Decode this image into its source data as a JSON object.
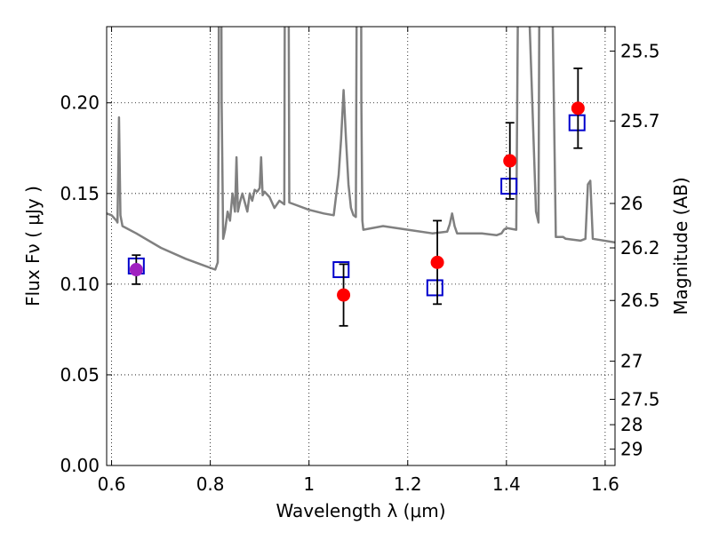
{
  "chart_data": {
    "type": "scatter",
    "xlabel": "Wavelength  λ (μm)",
    "ylabel": "Flux  Fν  ( μJy )",
    "y2label": "Magnitude (AB)",
    "xlim": [
      0.59,
      1.62
    ],
    "ylim": [
      0.0,
      0.242
    ],
    "grid": true,
    "x_ticks": [
      0.6,
      0.8,
      1.0,
      1.2,
      1.4,
      1.6
    ],
    "x_tick_labels": [
      "0.6",
      "0.8",
      "1",
      "1.2",
      "1.4",
      "1.6"
    ],
    "y_ticks": [
      0.0,
      0.05,
      0.1,
      0.15,
      0.2
    ],
    "y_tick_labels": [
      "0.00",
      "0.05",
      "0.10",
      "0.15",
      "0.20"
    ],
    "y2_ticks": [
      {
        "label": "25.5",
        "flux": 0.2285
      },
      {
        "label": "25.7",
        "flux": 0.19
      },
      {
        "label": "26",
        "flux": 0.1445
      },
      {
        "label": "26.2",
        "flux": 0.12
      },
      {
        "label": "26.5",
        "flux": 0.091
      },
      {
        "label": "27",
        "flux": 0.0575
      },
      {
        "label": "27.5",
        "flux": 0.0365
      },
      {
        "label": "28",
        "flux": 0.0225
      },
      {
        "label": "29",
        "flux": 0.009
      }
    ],
    "colors": {
      "model": "#808080",
      "observed": "#ff0000",
      "model_points": "#0000cc",
      "errorbar": "#000000",
      "first_point": "#a020c0"
    },
    "model_spectrum": {
      "x": [
        0.59,
        0.6,
        0.61,
        0.612,
        0.615,
        0.618,
        0.622,
        0.65,
        0.7,
        0.75,
        0.78,
        0.8,
        0.81,
        0.815,
        0.817,
        0.818,
        0.82,
        0.823,
        0.826,
        0.83,
        0.835,
        0.84,
        0.845,
        0.85,
        0.853,
        0.856,
        0.86,
        0.865,
        0.87,
        0.875,
        0.88,
        0.885,
        0.89,
        0.895,
        0.9,
        0.903,
        0.906,
        0.91,
        0.92,
        0.93,
        0.94,
        0.95,
        0.953,
        0.956,
        0.96,
        0.97,
        1.0,
        1.03,
        1.05,
        1.06,
        1.065,
        1.07,
        1.075,
        1.08,
        1.085,
        1.09,
        1.095,
        1.1,
        1.102,
        1.104,
        1.106,
        1.108,
        1.11,
        1.15,
        1.2,
        1.25,
        1.28,
        1.285,
        1.29,
        1.295,
        1.3,
        1.35,
        1.38,
        1.39,
        1.395,
        1.4,
        1.42,
        1.43,
        1.435,
        1.437,
        1.44,
        1.46,
        1.465,
        1.47,
        1.475,
        1.48,
        1.5,
        1.51,
        1.515,
        1.52,
        1.55,
        1.56,
        1.565,
        1.57,
        1.575,
        1.62
      ],
      "y": [
        0.139,
        0.138,
        0.135,
        0.134,
        0.192,
        0.138,
        0.132,
        0.128,
        0.12,
        0.114,
        0.111,
        0.109,
        0.108,
        0.112,
        0.2,
        0.5,
        0.5,
        0.2,
        0.125,
        0.13,
        0.14,
        0.135,
        0.15,
        0.14,
        0.17,
        0.14,
        0.145,
        0.15,
        0.145,
        0.14,
        0.15,
        0.146,
        0.152,
        0.151,
        0.153,
        0.17,
        0.149,
        0.151,
        0.148,
        0.142,
        0.146,
        0.144,
        0.5,
        0.5,
        0.145,
        0.144,
        0.141,
        0.139,
        0.138,
        0.16,
        0.18,
        0.207,
        0.18,
        0.155,
        0.142,
        0.138,
        0.137,
        0.5,
        0.5,
        0.5,
        0.2,
        0.135,
        0.13,
        0.132,
        0.13,
        0.128,
        0.129,
        0.133,
        0.139,
        0.132,
        0.128,
        0.128,
        0.127,
        0.128,
        0.13,
        0.131,
        0.13,
        0.5,
        0.5,
        0.5,
        0.3,
        0.14,
        0.134,
        0.5,
        0.5,
        0.5,
        0.126,
        0.126,
        0.126,
        0.125,
        0.124,
        0.125,
        0.155,
        0.157,
        0.125,
        0.123
      ]
    },
    "observed_points": [
      {
        "x": 0.65,
        "y": 0.108,
        "err": 0.008
      },
      {
        "x": 1.07,
        "y": 0.094,
        "err": 0.017
      },
      {
        "x": 1.26,
        "y": 0.112,
        "err": 0.023
      },
      {
        "x": 1.407,
        "y": 0.168,
        "err": 0.021
      },
      {
        "x": 1.545,
        "y": 0.197,
        "err": 0.022
      }
    ],
    "model_points": [
      {
        "x": 0.65,
        "y": 0.11
      },
      {
        "x": 1.065,
        "y": 0.108
      },
      {
        "x": 1.255,
        "y": 0.098
      },
      {
        "x": 1.405,
        "y": 0.154
      },
      {
        "x": 1.543,
        "y": 0.189
      }
    ]
  }
}
